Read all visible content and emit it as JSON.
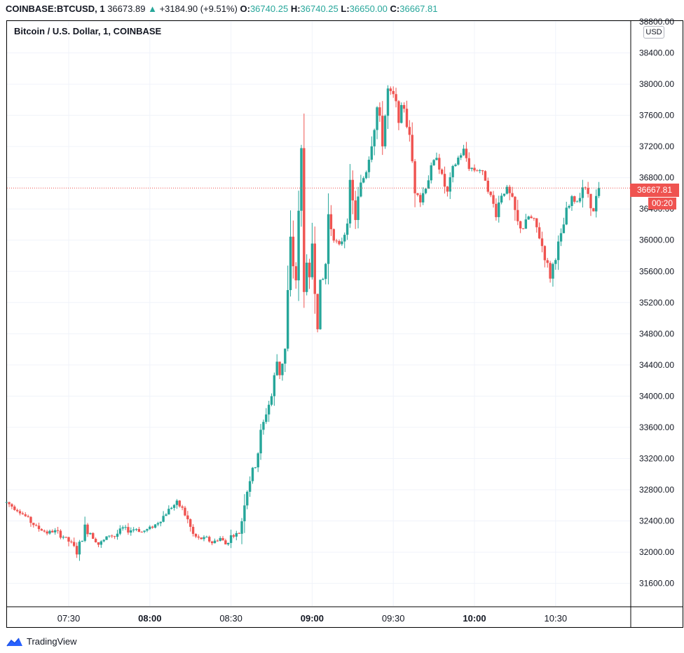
{
  "header": {
    "symbol": "COINBASE:BTCUSD, 1",
    "last": "36673.89",
    "change_arrow": "▲",
    "change": "+3184.90 (+9.51%)",
    "o_label": "O:",
    "o_value": "36740.25",
    "h_label": "H:",
    "h_value": "36740.25",
    "l_label": "L:",
    "l_value": "36650.00",
    "c_label": "C:",
    "c_value": "36667.81"
  },
  "chart_title": "Bitcoin / U.S. Dollar, 1, COINBASE",
  "currency": "USD",
  "price_tag": "36667.81",
  "countdown": "00:20",
  "footer": {
    "brand": "TradingView",
    "icon": "tradingview-cloud-icon"
  },
  "colors": {
    "up": "#26a69a",
    "down": "#ef5350",
    "grid": "#f0f3fa",
    "price_line": "#ef5350"
  },
  "chart_data": {
    "type": "candlestick",
    "title": "Bitcoin / U.S. Dollar, 1, COINBASE",
    "xlabel": "",
    "ylabel": "USD",
    "ylim": [
      31300,
      38800
    ],
    "x_ticks": [
      "07:30",
      "08:00",
      "08:30",
      "09:00",
      "09:30",
      "10:00",
      "10:30"
    ],
    "x_ticks_bold": [
      "08:00",
      "09:00",
      "10:00"
    ],
    "y_ticks": [
      "38800.00",
      "38400.00",
      "38000.00",
      "37600.00",
      "37200.00",
      "36800.00",
      "36400.00",
      "36000.00",
      "35600.00",
      "35200.00",
      "34800.00",
      "34400.00",
      "34000.00",
      "33600.00",
      "33200.00",
      "32800.00",
      "32400.00",
      "32000.00",
      "31600.00"
    ],
    "last_price": 36667.81,
    "interval_minutes": 1,
    "start_time": "07:07",
    "close_path": [
      {
        "t": "07:07",
        "v": 32640
      },
      {
        "t": "07:11",
        "v": 32540
      },
      {
        "t": "07:14",
        "v": 32460
      },
      {
        "t": "07:18",
        "v": 32320
      },
      {
        "t": "07:22",
        "v": 32250
      },
      {
        "t": "07:25",
        "v": 32270
      },
      {
        "t": "07:28",
        "v": 32200
      },
      {
        "t": "07:31",
        "v": 32110
      },
      {
        "t": "07:33",
        "v": 32000
      },
      {
        "t": "07:35",
        "v": 32170
      },
      {
        "t": "07:36",
        "v": 32300
      },
      {
        "t": "07:38",
        "v": 32250
      },
      {
        "t": "07:41",
        "v": 32100
      },
      {
        "t": "07:43",
        "v": 32150
      },
      {
        "t": "07:45",
        "v": 32220
      },
      {
        "t": "07:47",
        "v": 32200
      },
      {
        "t": "07:50",
        "v": 32310
      },
      {
        "t": "07:52",
        "v": 32280
      },
      {
        "t": "07:55",
        "v": 32300
      },
      {
        "t": "07:57",
        "v": 32260
      },
      {
        "t": "07:59",
        "v": 32290
      },
      {
        "t": "08:02",
        "v": 32350
      },
      {
        "t": "08:05",
        "v": 32460
      },
      {
        "t": "08:08",
        "v": 32580
      },
      {
        "t": "08:10",
        "v": 32630
      },
      {
        "t": "08:12",
        "v": 32560
      },
      {
        "t": "08:14",
        "v": 32410
      },
      {
        "t": "08:16",
        "v": 32220
      },
      {
        "t": "08:18",
        "v": 32170
      },
      {
        "t": "08:21",
        "v": 32180
      },
      {
        "t": "08:23",
        "v": 32120
      },
      {
        "t": "08:26",
        "v": 32180
      },
      {
        "t": "08:28",
        "v": 32100
      },
      {
        "t": "08:30",
        "v": 32200
      },
      {
        "t": "08:33",
        "v": 32240
      },
      {
        "t": "08:34",
        "v": 32420
      },
      {
        "t": "08:35",
        "v": 32700
      },
      {
        "t": "08:37",
        "v": 32950
      },
      {
        "t": "08:39",
        "v": 33100
      },
      {
        "t": "08:41",
        "v": 33500
      },
      {
        "t": "08:43",
        "v": 33800
      },
      {
        "t": "08:45",
        "v": 34000
      },
      {
        "t": "08:47",
        "v": 34450
      },
      {
        "t": "08:48",
        "v": 34300
      },
      {
        "t": "08:50",
        "v": 34600
      },
      {
        "t": "08:52",
        "v": 35900
      },
      {
        "t": "08:54",
        "v": 35500
      },
      {
        "t": "08:55",
        "v": 36200
      },
      {
        "t": "08:56",
        "v": 37100
      },
      {
        "t": "08:57",
        "v": 35800
      },
      {
        "t": "08:59",
        "v": 35400
      },
      {
        "t": "09:00",
        "v": 36000
      },
      {
        "t": "09:02",
        "v": 35000
      },
      {
        "t": "09:03",
        "v": 35300
      },
      {
        "t": "09:05",
        "v": 35700
      },
      {
        "t": "09:06",
        "v": 36300
      },
      {
        "t": "09:08",
        "v": 36050
      },
      {
        "t": "09:10",
        "v": 35900
      },
      {
        "t": "09:12",
        "v": 36100
      },
      {
        "t": "09:14",
        "v": 36600
      },
      {
        "t": "09:16",
        "v": 36300
      },
      {
        "t": "09:18",
        "v": 36700
      },
      {
        "t": "09:20",
        "v": 36900
      },
      {
        "t": "09:22",
        "v": 37300
      },
      {
        "t": "09:24",
        "v": 37700
      },
      {
        "t": "09:26",
        "v": 37300
      },
      {
        "t": "09:28",
        "v": 37900
      },
      {
        "t": "09:30",
        "v": 37850
      },
      {
        "t": "09:32",
        "v": 37600
      },
      {
        "t": "09:34",
        "v": 37700
      },
      {
        "t": "09:36",
        "v": 37300
      },
      {
        "t": "09:38",
        "v": 36700
      },
      {
        "t": "09:40",
        "v": 36500
      },
      {
        "t": "09:42",
        "v": 36700
      },
      {
        "t": "09:44",
        "v": 36900
      },
      {
        "t": "09:46",
        "v": 37100
      },
      {
        "t": "09:48",
        "v": 36800
      },
      {
        "t": "09:50",
        "v": 36600
      },
      {
        "t": "09:52",
        "v": 36900
      },
      {
        "t": "09:54",
        "v": 37050
      },
      {
        "t": "09:56",
        "v": 37150
      },
      {
        "t": "09:58",
        "v": 36950
      },
      {
        "t": "10:00",
        "v": 36900
      },
      {
        "t": "10:02",
        "v": 36900
      },
      {
        "t": "10:04",
        "v": 36800
      },
      {
        "t": "10:06",
        "v": 36550
      },
      {
        "t": "10:08",
        "v": 36350
      },
      {
        "t": "10:10",
        "v": 36600
      },
      {
        "t": "10:12",
        "v": 36650
      },
      {
        "t": "10:14",
        "v": 36500
      },
      {
        "t": "10:16",
        "v": 36200
      },
      {
        "t": "10:18",
        "v": 36150
      },
      {
        "t": "10:20",
        "v": 36300
      },
      {
        "t": "10:22",
        "v": 36250
      },
      {
        "t": "10:24",
        "v": 36050
      },
      {
        "t": "10:26",
        "v": 35800
      },
      {
        "t": "10:28",
        "v": 35550
      },
      {
        "t": "10:30",
        "v": 35800
      },
      {
        "t": "10:32",
        "v": 36050
      },
      {
        "t": "10:34",
        "v": 36350
      },
      {
        "t": "10:36",
        "v": 36520
      },
      {
        "t": "10:38",
        "v": 36500
      },
      {
        "t": "10:40",
        "v": 36700
      },
      {
        "t": "10:42",
        "v": 36600
      },
      {
        "t": "10:44",
        "v": 36350
      },
      {
        "t": "10:46",
        "v": 36700
      }
    ]
  }
}
